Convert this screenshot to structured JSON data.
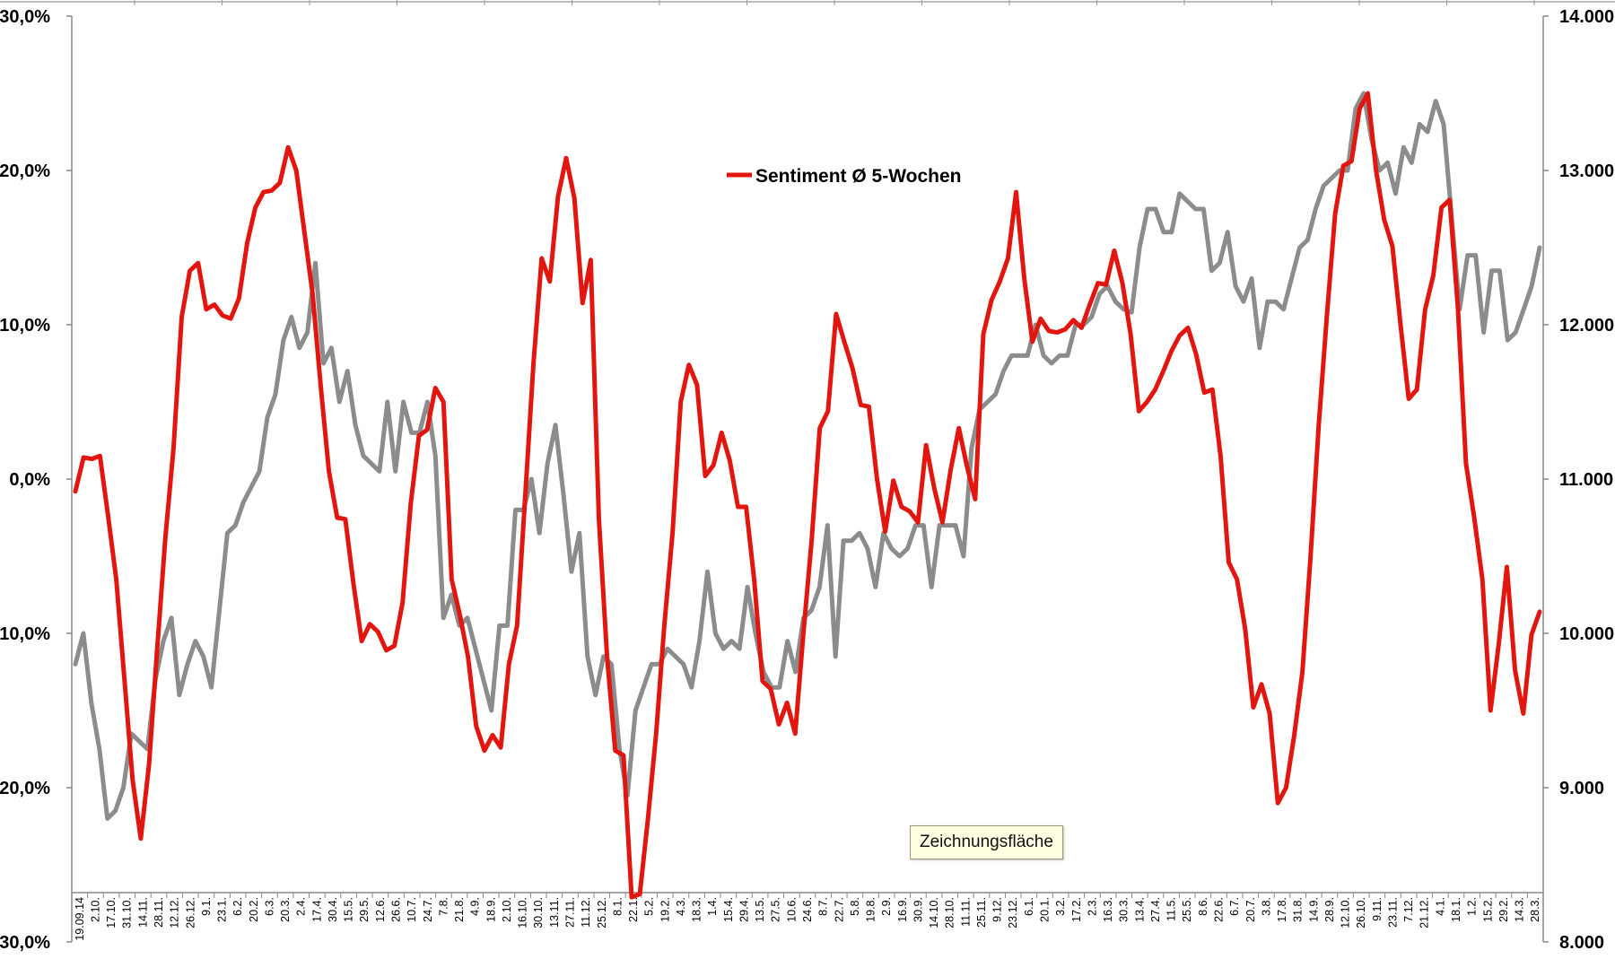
{
  "tooltip": "Zeichnungsfläche",
  "chart_data": {
    "type": "line",
    "legend": {
      "position": "top-center",
      "entries": [
        "Sentiment Ø 5-Wochen"
      ]
    },
    "left_axis": {
      "range": [
        -30,
        30
      ],
      "ticks": [
        30,
        20,
        10,
        0,
        -10,
        -20,
        -30
      ],
      "tick_labels": [
        "30,0%",
        "20,0%",
        "10,0%",
        "0,0%",
        "-10,0%",
        "-20,0%",
        "-30,0%"
      ]
    },
    "right_axis": {
      "range": [
        8000,
        14000
      ],
      "ticks": [
        14000,
        13000,
        12000,
        11000,
        10000,
        9000,
        8000
      ],
      "tick_labels": [
        "14.000",
        "13.000",
        "12.000",
        "11.000",
        "10.000",
        "9.000",
        "8.000"
      ]
    },
    "x_labels": [
      "19.09.14",
      "2.10.",
      "17.10.",
      "31.10.",
      "14.11.",
      "28.11.",
      "12.12.",
      "26.12.",
      "9.1.",
      "23.1.",
      "6.2.",
      "20.2.",
      "6.3.",
      "20.3.",
      "2.4.",
      "17.4.",
      "30.4.",
      "15.5.",
      "29.5.",
      "12.6.",
      "26.6.",
      "10.7.",
      "24.7.",
      "7.8.",
      "21.8.",
      "4.9.",
      "18.9.",
      "2.10.",
      "16.10.",
      "30.10.",
      "13.11.",
      "27.11.",
      "11.12.",
      "25.12.",
      "8.1.",
      "22.1.",
      "5.2.",
      "19.2.",
      "4.3.",
      "18.3.",
      "1.4.",
      "15.4.",
      "29.4.",
      "13.5.",
      "27.5.",
      "10.6.",
      "24.6.",
      "8.7.",
      "22.7.",
      "5.8.",
      "19.8.",
      "2.9.",
      "16.9.",
      "30.9.",
      "14.10.",
      "28.10.",
      "11.11.",
      "25.11.",
      "9.12.",
      "23.12.",
      "6.1.",
      "20.1.",
      "3.2.",
      "17.2.",
      "2.3.",
      "16.3.",
      "30.3.",
      "13.4.",
      "27.4.",
      "11.5.",
      "25.5.",
      "8.6.",
      "22.6.",
      "6.7.",
      "20.7.",
      "3.8.",
      "17.8.",
      "31.8.",
      "14.9.",
      "28.9.",
      "12.10.",
      "26.10.",
      "9.11.",
      "23.11.",
      "7.12.",
      "21.12.",
      "4.1.",
      "18.1.",
      "1.2.",
      "15.2.",
      "29.2.",
      "14.3.",
      "28.3."
    ],
    "series": [
      {
        "name": "Sentiment Ø 5-Wochen",
        "axis": "left",
        "color": "#e3160f",
        "values": [
          -0.8,
          1.4,
          1.3,
          1.5,
          -2.4,
          -6.5,
          -13,
          -19.5,
          -23.3,
          -18.5,
          -11,
          -3.8,
          2,
          10.5,
          13.5,
          14,
          11,
          11.3,
          10.6,
          10.4,
          11.7,
          15.3,
          17.6,
          18.6,
          18.7,
          19.2,
          21.5,
          20,
          16,
          12,
          6,
          0.5,
          -2.5,
          -2.6,
          -6.8,
          -10.5,
          -9.4,
          -9.9,
          -11.1,
          -10.8,
          -8,
          -1.6,
          2.8,
          3.2,
          5.9,
          5,
          -6.5,
          -8.8,
          -11.5,
          -16,
          -17.6,
          -16.6,
          -17.4,
          -12,
          -9.5,
          -1,
          7.5,
          14.3,
          12.8,
          18.3,
          20.8,
          18.2,
          11.4,
          14.2,
          -2.6,
          -11.5,
          -17.6,
          -17.9,
          -27.1,
          -26.9,
          -22,
          -16.5,
          -9.5,
          -3.5,
          5,
          7.4,
          6.1,
          0.2,
          0.9,
          3,
          1.2,
          -1.8,
          -1.8,
          -6.6,
          -13.1,
          -13.6,
          -15.9,
          -14.5,
          -16.5,
          -10,
          -4,
          3.3,
          4.4,
          10.7,
          8.9,
          7.2,
          4.8,
          4.7,
          0,
          -3.4,
          -0.1,
          -1.8,
          -2.1,
          -2.8,
          2.2,
          -0.6,
          -2.8,
          0.6,
          3.3,
          0.8,
          -1.3,
          9.4,
          11.6,
          12.8,
          14.3,
          18.6,
          13,
          8.9,
          10.4,
          9.6,
          9.5,
          9.7,
          10.3,
          9.8,
          11.3,
          12.7,
          12.6,
          14.8,
          12.7,
          9.4,
          4.4,
          5,
          5.8,
          7,
          8.3,
          9.3,
          9.8,
          8.1,
          5.6,
          5.8,
          1.5,
          -5.4,
          -6.5,
          -9.7,
          -14.8,
          -13.3,
          -15.2,
          -21,
          -20,
          -16.6,
          -12.5,
          -5,
          3.5,
          10.6,
          17.2,
          20.3,
          20.6,
          24,
          25,
          20,
          16.8,
          15.1,
          10,
          5.2,
          5.8,
          11,
          13.2,
          17.6,
          18.1,
          11.2,
          1,
          -2.5,
          -6.5,
          -15,
          -10.7,
          -5.7,
          -12.4,
          -15.2,
          -10.1,
          -8.6
        ]
      },
      {
        "axis": "right",
        "color": "#8c8c8c",
        "values": [
          9.8,
          10.0,
          9.55,
          9.25,
          8.8,
          8.85,
          9.0,
          9.35,
          9.3,
          9.25,
          9.7,
          9.95,
          10.1,
          9.6,
          9.8,
          9.95,
          9.85,
          9.65,
          10.15,
          10.65,
          10.7,
          10.85,
          10.95,
          11.05,
          11.4,
          11.55,
          11.9,
          12.05,
          11.85,
          11.95,
          12.4,
          11.75,
          11.85,
          11.5,
          11.7,
          11.35,
          11.15,
          11.1,
          11.05,
          11.5,
          11.05,
          11.5,
          11.3,
          11.3,
          11.5,
          11.15,
          10.1,
          10.25,
          10.05,
          10.1,
          9.9,
          9.7,
          9.5,
          10.05,
          10.05,
          10.8,
          10.8,
          11.0,
          10.65,
          11.1,
          11.35,
          10.9,
          10.4,
          10.65,
          9.85,
          9.6,
          9.85,
          9.8,
          9.25,
          8.95,
          9.5,
          9.65,
          9.8,
          9.8,
          9.9,
          9.85,
          9.8,
          9.65,
          9.95,
          10.4,
          10.0,
          9.9,
          9.95,
          9.9,
          10.3,
          10.0,
          9.75,
          9.65,
          9.65,
          9.95,
          9.75,
          10.1,
          10.15,
          10.3,
          10.7,
          9.85,
          10.6,
          10.6,
          10.65,
          10.55,
          10.3,
          10.65,
          10.55,
          10.5,
          10.55,
          10.7,
          10.7,
          10.3,
          10.7,
          10.7,
          10.7,
          10.5,
          11.2,
          11.45,
          11.5,
          11.55,
          11.7,
          11.8,
          11.8,
          11.8,
          12.0,
          11.8,
          11.75,
          11.8,
          11.8,
          12.0,
          12.0,
          12.05,
          12.2,
          12.25,
          12.15,
          12.1,
          12.08,
          12.5,
          12.75,
          12.75,
          12.6,
          12.6,
          12.85,
          12.8,
          12.75,
          12.75,
          12.35,
          12.4,
          12.6,
          12.25,
          12.15,
          12.3,
          11.85,
          12.15,
          12.15,
          12.1,
          12.3,
          12.5,
          12.55,
          12.75,
          12.9,
          12.95,
          13.0,
          13.0,
          13.4,
          13.5,
          13.2,
          13.0,
          13.05,
          12.85,
          13.15,
          13.05,
          13.3,
          13.25,
          13.45,
          13.3,
          12.7,
          12.1,
          12.45,
          12.45,
          11.95,
          12.35,
          12.35,
          11.9,
          11.95,
          12.1,
          12.25,
          12.5
        ]
      }
    ]
  }
}
